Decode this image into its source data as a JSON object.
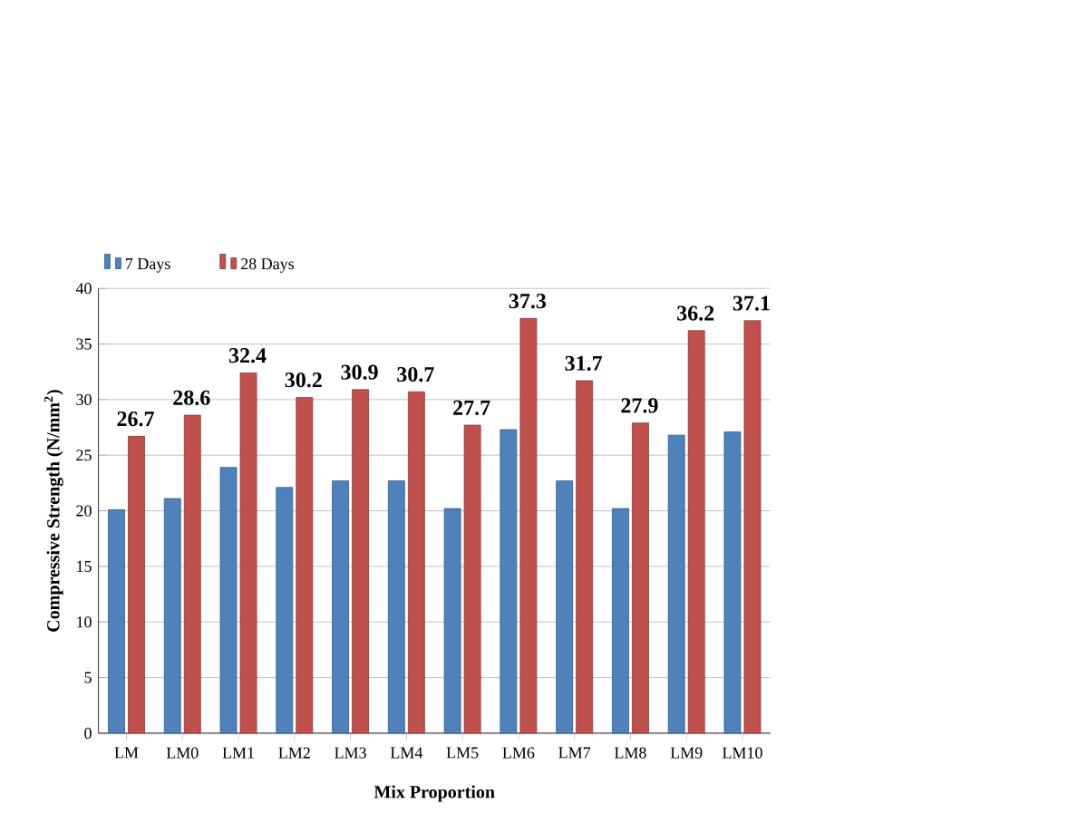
{
  "chart_data": {
    "type": "bar",
    "xlabel": "Mix Proportion",
    "ylabel": "Compressive Strength (N/mm$^{2}$)",
    "categories": [
      "LM",
      "LM0",
      "LM1",
      "LM2",
      "LM3",
      "LM4",
      "LM5",
      "LM6",
      "LM7",
      "LM8",
      "LM9",
      "LM10"
    ],
    "series": [
      {
        "name": "7 Days",
        "color": "#4f81bd",
        "values": [
          20.1,
          21.1,
          23.9,
          22.1,
          22.7,
          22.7,
          20.2,
          27.3,
          22.7,
          20.2,
          26.8,
          27.1
        ]
      },
      {
        "name": "28 Days",
        "color": "#c0504d",
        "values": [
          26.7,
          28.6,
          32.4,
          30.2,
          30.9,
          30.7,
          27.7,
          37.3,
          31.7,
          27.9,
          36.2,
          37.1
        ],
        "value_labels": [
          "26.7",
          "28.6",
          "32.4",
          "30.2",
          "30.9",
          "30.7",
          "27.7",
          "37.3",
          "31.7",
          "27.9",
          "36.2",
          "37.1"
        ]
      }
    ],
    "ylim": [
      0,
      40
    ],
    "yticks": [
      0,
      5,
      10,
      15,
      20,
      25,
      30,
      35,
      40
    ],
    "grid": "y",
    "legend": "top left"
  }
}
